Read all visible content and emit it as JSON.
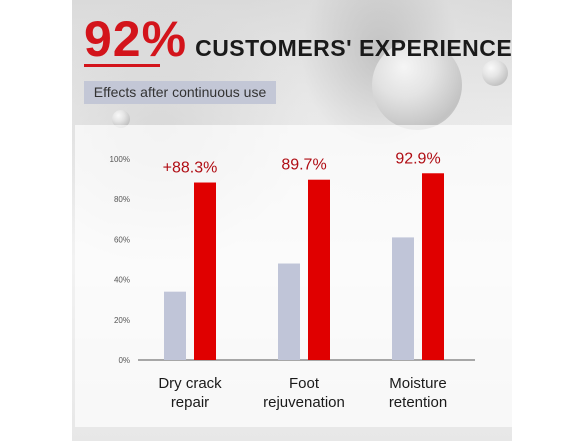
{
  "header": {
    "big_percent": "92%",
    "title_rest": "CUSTOMERS' EXPERIENCE",
    "subtitle": "Effects after continuous use"
  },
  "colors": {
    "accent_red": "#e00000",
    "before_bar": "#c0c5d8",
    "headline_red": "#d3141b"
  },
  "chart_data": {
    "type": "bar",
    "categories": [
      [
        "Dry crack",
        "repair"
      ],
      [
        "Foot",
        "rejuvenation"
      ],
      [
        "Moisture",
        "retention"
      ]
    ],
    "series": [
      {
        "values": [
          34,
          48,
          61
        ]
      },
      {
        "values": [
          88.3,
          89.7,
          92.9
        ]
      }
    ],
    "data_labels": [
      "+88.3%",
      "89.7%",
      "92.9%"
    ],
    "yticks": [
      "0%",
      "20%",
      "40%",
      "60%",
      "80%",
      "100%"
    ],
    "ylim": [
      0,
      100
    ],
    "grid": false
  }
}
